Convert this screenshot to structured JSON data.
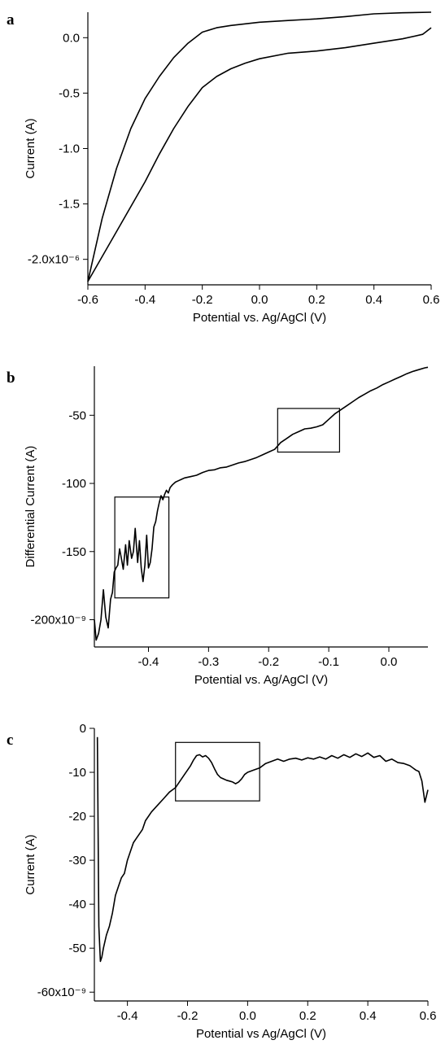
{
  "chart_data": [
    {
      "panel": "a",
      "type": "line",
      "xlabel": "Potential vs. Ag/AgCl (V)",
      "ylabel": "Current (A)",
      "xlim": [
        -0.6,
        0.6
      ],
      "ylim": [
        -2.23e-06,
        2.3e-07
      ],
      "xticks": [
        -0.6,
        -0.4,
        -0.2,
        0.0,
        0.2,
        0.4,
        0.6
      ],
      "xtick_labels": [
        "-0.6",
        "-0.4",
        "-0.2",
        "0.0",
        "0.2",
        "0.4",
        "0.6"
      ],
      "yticks": [
        0.0,
        -5e-07,
        -1e-06,
        -1.5e-06,
        -2e-06
      ],
      "ytick_labels": [
        "0.0",
        "-0.5",
        "-1.0",
        "-1.5",
        "-2.0x10⁻⁶"
      ],
      "series": [
        {
          "x": [
            -0.6,
            -0.55,
            -0.5,
            -0.45,
            -0.4,
            -0.35,
            -0.3,
            -0.25,
            -0.2,
            -0.15,
            -0.1,
            -0.05,
            0.0,
            0.1,
            0.2,
            0.3,
            0.4,
            0.5,
            0.6
          ],
          "y": [
            -2.2e-06,
            -1.63e-06,
            -1.18e-06,
            -8.2e-07,
            -5.5e-07,
            -3.5e-07,
            -1.8e-07,
            -5e-08,
            5e-08,
            9e-08,
            1.1e-07,
            1.25e-07,
            1.4e-07,
            1.55e-07,
            1.7e-07,
            1.9e-07,
            2.15e-07,
            2.25e-07,
            2.3e-07
          ]
        },
        {
          "x": [
            -0.6,
            -0.5,
            -0.4,
            -0.35,
            -0.3,
            -0.25,
            -0.2,
            -0.15,
            -0.1,
            -0.05,
            0.0,
            0.1,
            0.2,
            0.3,
            0.4,
            0.5,
            0.57,
            0.6
          ],
          "y": [
            -2.2e-06,
            -1.75e-06,
            -1.3e-06,
            -1.05e-06,
            -8.2e-07,
            -6.2e-07,
            -4.5e-07,
            -3.5e-07,
            -2.8e-07,
            -2.3e-07,
            -1.9e-07,
            -1.4e-07,
            -1.2e-07,
            -9e-08,
            -5e-08,
            -1e-08,
            3e-08,
            9e-08
          ]
        }
      ]
    },
    {
      "panel": "b",
      "type": "line",
      "xlabel": "Potential vs. Ag/AgCl (V)",
      "ylabel": "Differential Current (A)",
      "xlim": [
        -0.49,
        0.065
      ],
      "ylim": [
        -2.2e-07,
        -1.4e-08
      ],
      "xticks": [
        -0.4,
        -0.3,
        -0.2,
        -0.1,
        0.0
      ],
      "xtick_labels": [
        "-0.4",
        "-0.3",
        "-0.2",
        "-0.1",
        "0.0"
      ],
      "yticks": [
        -5e-08,
        -1e-07,
        -1.5e-07,
        -2e-07
      ],
      "ytick_labels": [
        "-50",
        "-100",
        "-150",
        "-200x10⁻⁹"
      ],
      "series": [
        {
          "x": [
            -0.49,
            -0.487,
            -0.483,
            -0.479,
            -0.475,
            -0.471,
            -0.467,
            -0.463,
            -0.46,
            -0.457,
            -0.454,
            -0.451,
            -0.448,
            -0.445,
            -0.442,
            -0.438,
            -0.435,
            -0.432,
            -0.428,
            -0.425,
            -0.422,
            -0.418,
            -0.415,
            -0.412,
            -0.409,
            -0.406,
            -0.403,
            -0.4,
            -0.397,
            -0.394,
            -0.391,
            -0.388,
            -0.385,
            -0.382,
            -0.379,
            -0.376,
            -0.373,
            -0.37,
            -0.367,
            -0.364,
            -0.36,
            -0.355,
            -0.35,
            -0.345,
            -0.34,
            -0.33,
            -0.32,
            -0.31,
            -0.3,
            -0.29,
            -0.28,
            -0.27,
            -0.26,
            -0.25,
            -0.24,
            -0.23,
            -0.22,
            -0.21,
            -0.2,
            -0.19,
            -0.18,
            -0.17,
            -0.16,
            -0.15,
            -0.14,
            -0.13,
            -0.12,
            -0.11,
            -0.1,
            -0.09,
            -0.08,
            -0.07,
            -0.06,
            -0.05,
            -0.04,
            -0.03,
            -0.02,
            -0.01,
            0.0,
            0.01,
            0.02,
            0.03,
            0.04,
            0.05,
            0.06,
            0.065
          ],
          "y": [
            -2e-07,
            -2.15e-07,
            -2.1e-07,
            -2e-07,
            -1.78e-07,
            -1.98e-07,
            -2.06e-07,
            -1.85e-07,
            -1.8e-07,
            -1.65e-07,
            -1.62e-07,
            -1.6e-07,
            -1.48e-07,
            -1.55e-07,
            -1.63e-07,
            -1.45e-07,
            -1.6e-07,
            -1.42e-07,
            -1.55e-07,
            -1.5e-07,
            -1.33e-07,
            -1.58e-07,
            -1.42e-07,
            -1.62e-07,
            -1.72e-07,
            -1.6e-07,
            -1.38e-07,
            -1.62e-07,
            -1.58e-07,
            -1.48e-07,
            -1.32e-07,
            -1.28e-07,
            -1.2e-07,
            -1.14e-07,
            -1.09e-07,
            -1.12e-07,
            -1.08e-07,
            -1.05e-07,
            -1.07e-07,
            -1.03e-07,
            -1.01e-07,
            -9.9e-08,
            -9.8e-08,
            -9.7e-08,
            -9.6e-08,
            -9.5e-08,
            -9.4e-08,
            -9.2e-08,
            -9.05e-08,
            -9e-08,
            -8.85e-08,
            -8.8e-08,
            -8.65e-08,
            -8.5e-08,
            -8.4e-08,
            -8.25e-08,
            -8.1e-08,
            -7.9e-08,
            -7.7e-08,
            -7.5e-08,
            -7e-08,
            -6.7e-08,
            -6.4e-08,
            -6.2e-08,
            -6e-08,
            -5.95e-08,
            -5.85e-08,
            -5.7e-08,
            -5.3e-08,
            -4.9e-08,
            -4.6e-08,
            -4.3e-08,
            -4e-08,
            -3.7e-08,
            -3.45e-08,
            -3.2e-08,
            -3e-08,
            -2.75e-08,
            -2.55e-08,
            -2.35e-08,
            -2.15e-08,
            -1.95e-08,
            -1.78e-08,
            -1.65e-08,
            -1.52e-08,
            -1.48e-08
          ]
        }
      ],
      "regions": [
        {
          "x": [
            -0.456,
            -0.366
          ],
          "y": [
            -1.84e-07,
            -1.1e-07
          ]
        },
        {
          "x": [
            -0.185,
            -0.082
          ],
          "y": [
            -7.7e-08,
            -4.5e-08
          ]
        }
      ]
    },
    {
      "panel": "c",
      "type": "line",
      "xlabel": "Potential vs Ag/AgCl (V)",
      "ylabel": "Current (A)",
      "xlim": [
        -0.51,
        0.6
      ],
      "ylim": [
        -6.2e-08,
        0.0
      ],
      "xticks": [
        -0.4,
        -0.2,
        0.0,
        0.2,
        0.4,
        0.6
      ],
      "xtick_labels": [
        "-0.4",
        "-0.2",
        "0.0",
        "0.2",
        "0.4",
        "0.6"
      ],
      "yticks": [
        0,
        -1e-08,
        -2e-08,
        -3e-08,
        -4e-08,
        -5e-08,
        -6e-08
      ],
      "ytick_labels": [
        "0",
        "-10",
        "-20",
        "-30",
        "-40",
        "-50",
        "-60x10⁻⁹"
      ],
      "series": [
        {
          "x": [
            -0.5,
            -0.495,
            -0.49,
            -0.485,
            -0.48,
            -0.47,
            -0.46,
            -0.45,
            -0.44,
            -0.43,
            -0.42,
            -0.41,
            -0.4,
            -0.39,
            -0.38,
            -0.37,
            -0.36,
            -0.35,
            -0.34,
            -0.32,
            -0.3,
            -0.28,
            -0.26,
            -0.24,
            -0.22,
            -0.2,
            -0.19,
            -0.18,
            -0.17,
            -0.16,
            -0.15,
            -0.14,
            -0.13,
            -0.12,
            -0.11,
            -0.1,
            -0.09,
            -0.08,
            -0.07,
            -0.06,
            -0.05,
            -0.04,
            -0.03,
            -0.02,
            -0.01,
            0.0,
            0.02,
            0.04,
            0.06,
            0.08,
            0.1,
            0.12,
            0.14,
            0.16,
            0.18,
            0.2,
            0.22,
            0.24,
            0.26,
            0.28,
            0.3,
            0.32,
            0.34,
            0.36,
            0.38,
            0.4,
            0.42,
            0.44,
            0.46,
            0.48,
            0.5,
            0.52,
            0.54,
            0.56,
            0.57,
            0.58,
            0.59,
            0.6
          ],
          "y": [
            -2e-09,
            -4.5e-08,
            -5.3e-08,
            -5.2e-08,
            -5e-08,
            -4.7e-08,
            -4.5e-08,
            -4.2e-08,
            -3.8e-08,
            -3.6e-08,
            -3.4e-08,
            -3.3e-08,
            -3e-08,
            -2.8e-08,
            -2.6e-08,
            -2.5e-08,
            -2.4e-08,
            -2.3e-08,
            -2.1e-08,
            -1.9e-08,
            -1.75e-08,
            -1.6e-08,
            -1.45e-08,
            -1.35e-08,
            -1.15e-08,
            -9.5e-09,
            -8.5e-09,
            -7.2e-09,
            -6.2e-09,
            -6e-09,
            -6.5e-09,
            -6.2e-09,
            -6.8e-09,
            -7.8e-09,
            -9.2e-09,
            -1.05e-08,
            -1.12e-08,
            -1.15e-08,
            -1.18e-08,
            -1.2e-08,
            -1.22e-08,
            -1.26e-08,
            -1.22e-08,
            -1.15e-08,
            -1.05e-08,
            -1e-08,
            -9.5e-09,
            -9e-09,
            -8e-09,
            -7.5e-09,
            -7e-09,
            -7.5e-09,
            -7e-09,
            -6.8e-09,
            -7.2e-09,
            -6.7e-09,
            -7e-09,
            -6.5e-09,
            -7e-09,
            -6.2e-09,
            -6.8e-09,
            -6e-09,
            -6.6e-09,
            -5.8e-09,
            -6.4e-09,
            -5.6e-09,
            -6.6e-09,
            -6.2e-09,
            -7.5e-09,
            -7e-09,
            -7.8e-09,
            -8e-09,
            -8.5e-09,
            -9.5e-09,
            -9.8e-09,
            -1.2e-08,
            -1.68e-08,
            -1.4e-08
          ]
        }
      ],
      "regions": [
        {
          "x": [
            -0.24,
            0.04
          ],
          "y": [
            -1.65e-08,
            -3.2e-09
          ]
        }
      ]
    }
  ]
}
